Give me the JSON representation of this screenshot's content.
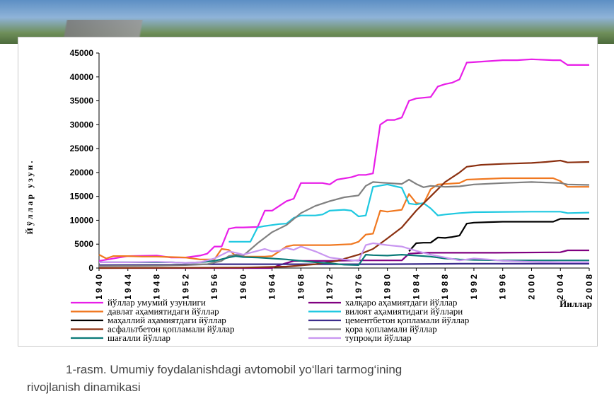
{
  "caption": {
    "line1": "1-rasm. Umumiy foydalanishdagi avtomobil yo‘llari tarmog‘ining",
    "line2": "rivojlanish dinamikasi"
  },
  "chart_data": {
    "type": "line",
    "ylabel": "Йўллар узун.",
    "xlabel": "Йиллар",
    "xlim": [
      1940,
      2008
    ],
    "ylim": [
      0,
      45000
    ],
    "grid": false,
    "legend_position": "bottom",
    "y_ticks": [
      0,
      5000,
      10000,
      15000,
      20000,
      25000,
      30000,
      35000,
      40000,
      45000
    ],
    "x_ticks": [
      1940,
      1944,
      1948,
      1952,
      1956,
      1960,
      1964,
      1968,
      1972,
      1976,
      1980,
      1984,
      1988,
      1992,
      1996,
      2000,
      2004,
      2008
    ],
    "series": [
      {
        "name": "йўллар умумий узунлиги",
        "color": "#e81ee8",
        "points": [
          [
            1940,
            1500
          ],
          [
            1944,
            2500
          ],
          [
            1948,
            2600
          ],
          [
            1950,
            2200
          ],
          [
            1952,
            2200
          ],
          [
            1954,
            2600
          ],
          [
            1955,
            3000
          ],
          [
            1956,
            4500
          ],
          [
            1957,
            4500
          ],
          [
            1958,
            8200
          ],
          [
            1959,
            8500
          ],
          [
            1960,
            8500
          ],
          [
            1962,
            8600
          ],
          [
            1963,
            12000
          ],
          [
            1964,
            12000
          ],
          [
            1965,
            13000
          ],
          [
            1966,
            14000
          ],
          [
            1967,
            14500
          ],
          [
            1968,
            17800
          ],
          [
            1970,
            17800
          ],
          [
            1971,
            17800
          ],
          [
            1972,
            17500
          ],
          [
            1973,
            18500
          ],
          [
            1975,
            19000
          ],
          [
            1976,
            19500
          ],
          [
            1977,
            19500
          ],
          [
            1978,
            19800
          ],
          [
            1979,
            30000
          ],
          [
            1980,
            31000
          ],
          [
            1981,
            31000
          ],
          [
            1982,
            31500
          ],
          [
            1983,
            35000
          ],
          [
            1984,
            35500
          ],
          [
            1986,
            35800
          ],
          [
            1987,
            38000
          ],
          [
            1988,
            38500
          ],
          [
            1989,
            38800
          ],
          [
            1990,
            39500
          ],
          [
            1991,
            43000
          ],
          [
            1994,
            43300
          ],
          [
            1996,
            43500
          ],
          [
            1998,
            43500
          ],
          [
            2000,
            43700
          ],
          [
            2003,
            43500
          ],
          [
            2004,
            43500
          ],
          [
            2005,
            42500
          ],
          [
            2008,
            42500
          ]
        ]
      },
      {
        "name": "халқаро аҳамиятдаги йўллар",
        "color": "#800080",
        "points": [
          [
            1940,
            0
          ],
          [
            1964,
            0
          ],
          [
            1965,
            600
          ],
          [
            1967,
            1500
          ],
          [
            1968,
            1500
          ],
          [
            1972,
            1500
          ],
          [
            1976,
            1600
          ],
          [
            1980,
            1600
          ],
          [
            1982,
            1600
          ],
          [
            1983,
            3000
          ],
          [
            1985,
            3200
          ],
          [
            1995,
            3200
          ],
          [
            2004,
            3300
          ],
          [
            2005,
            3700
          ],
          [
            2008,
            3700
          ]
        ]
      },
      {
        "name": "давлат аҳамиятидаги йўллар",
        "color": "#f07820",
        "points": [
          [
            1940,
            2800
          ],
          [
            1941,
            2000
          ],
          [
            1942,
            2500
          ],
          [
            1944,
            2500
          ],
          [
            1946,
            2400
          ],
          [
            1948,
            2400
          ],
          [
            1950,
            2300
          ],
          [
            1952,
            2200
          ],
          [
            1954,
            1800
          ],
          [
            1956,
            1800
          ],
          [
            1957,
            4000
          ],
          [
            1958,
            3800
          ],
          [
            1959,
            2500
          ],
          [
            1960,
            2400
          ],
          [
            1963,
            2400
          ],
          [
            1964,
            2500
          ],
          [
            1965,
            3500
          ],
          [
            1966,
            4500
          ],
          [
            1967,
            4800
          ],
          [
            1970,
            4800
          ],
          [
            1972,
            4800
          ],
          [
            1975,
            5000
          ],
          [
            1976,
            5500
          ],
          [
            1977,
            7000
          ],
          [
            1978,
            7200
          ],
          [
            1979,
            12000
          ],
          [
            1980,
            11800
          ],
          [
            1982,
            12200
          ],
          [
            1983,
            15500
          ],
          [
            1984,
            13600
          ],
          [
            1985,
            13400
          ],
          [
            1986,
            16500
          ],
          [
            1987,
            17500
          ],
          [
            1990,
            17800
          ],
          [
            1991,
            18500
          ],
          [
            1996,
            18800
          ],
          [
            2002,
            18800
          ],
          [
            2003,
            18800
          ],
          [
            2004,
            18200
          ],
          [
            2005,
            17000
          ],
          [
            2008,
            17000
          ]
        ]
      },
      {
        "name": "вилоят аҳамиятидаги йўллари",
        "color": "#1ec8e0",
        "points": [
          [
            1958,
            5500
          ],
          [
            1961,
            5500
          ],
          [
            1962,
            8500
          ],
          [
            1963,
            8800
          ],
          [
            1964,
            9000
          ],
          [
            1965,
            9200
          ],
          [
            1966,
            9300
          ],
          [
            1967,
            10500
          ],
          [
            1968,
            11000
          ],
          [
            1970,
            11000
          ],
          [
            1971,
            11200
          ],
          [
            1972,
            12000
          ],
          [
            1974,
            12200
          ],
          [
            1975,
            12000
          ],
          [
            1976,
            10800
          ],
          [
            1977,
            11000
          ],
          [
            1978,
            17000
          ],
          [
            1980,
            17500
          ],
          [
            1982,
            16800
          ],
          [
            1983,
            13500
          ],
          [
            1984,
            13300
          ],
          [
            1985,
            13600
          ],
          [
            1986,
            12500
          ],
          [
            1987,
            11000
          ],
          [
            1988,
            11200
          ],
          [
            1990,
            11500
          ],
          [
            1992,
            11700
          ],
          [
            2000,
            11800
          ],
          [
            2004,
            11800
          ],
          [
            2005,
            11500
          ],
          [
            2008,
            11600
          ]
        ]
      },
      {
        "name": "маҳаллий аҳамиятдаги йўллар",
        "color": "#000000",
        "points": [
          [
            1983,
            3500
          ],
          [
            1984,
            5200
          ],
          [
            1985,
            5300
          ],
          [
            1986,
            5300
          ],
          [
            1987,
            6400
          ],
          [
            1988,
            6300
          ],
          [
            1989,
            6500
          ],
          [
            1990,
            6800
          ],
          [
            1991,
            9300
          ],
          [
            1992,
            9500
          ],
          [
            1994,
            9600
          ],
          [
            1996,
            9700
          ],
          [
            2003,
            9700
          ],
          [
            2004,
            10300
          ],
          [
            2005,
            10300
          ],
          [
            2008,
            10300
          ]
        ]
      },
      {
        "name": "цементбетон қопламали йўллар",
        "color": "#3c2d8c",
        "points": [
          [
            1940,
            600
          ],
          [
            1950,
            700
          ],
          [
            1956,
            800
          ],
          [
            1960,
            800
          ],
          [
            1970,
            800
          ],
          [
            1980,
            800
          ],
          [
            1990,
            900
          ],
          [
            2000,
            900
          ],
          [
            2008,
            900
          ]
        ]
      },
      {
        "name": "асфальтбетон қопламали йўллар",
        "color": "#8b3010",
        "points": [
          [
            1940,
            0
          ],
          [
            1960,
            100
          ],
          [
            1966,
            300
          ],
          [
            1970,
            800
          ],
          [
            1973,
            1500
          ],
          [
            1976,
            2800
          ],
          [
            1978,
            4000
          ],
          [
            1980,
            6200
          ],
          [
            1982,
            8500
          ],
          [
            1984,
            12000
          ],
          [
            1986,
            15000
          ],
          [
            1988,
            18000
          ],
          [
            1990,
            20000
          ],
          [
            1991,
            21200
          ],
          [
            1993,
            21600
          ],
          [
            1996,
            21800
          ],
          [
            2000,
            22000
          ],
          [
            2002,
            22200
          ],
          [
            2004,
            22500
          ],
          [
            2005,
            22100
          ],
          [
            2008,
            22200
          ]
        ]
      },
      {
        "name": "қора қопламали йўллар",
        "color": "#808080",
        "points": [
          [
            1940,
            400
          ],
          [
            1948,
            500
          ],
          [
            1952,
            600
          ],
          [
            1955,
            800
          ],
          [
            1957,
            1500
          ],
          [
            1958,
            2500
          ],
          [
            1959,
            2800
          ],
          [
            1960,
            2600
          ],
          [
            1962,
            5200
          ],
          [
            1964,
            7500
          ],
          [
            1966,
            9000
          ],
          [
            1968,
            11500
          ],
          [
            1970,
            13000
          ],
          [
            1972,
            14000
          ],
          [
            1974,
            14800
          ],
          [
            1976,
            15200
          ],
          [
            1977,
            17200
          ],
          [
            1978,
            18000
          ],
          [
            1980,
            17800
          ],
          [
            1982,
            17600
          ],
          [
            1983,
            18500
          ],
          [
            1984,
            17600
          ],
          [
            1985,
            16900
          ],
          [
            1986,
            17200
          ],
          [
            1988,
            17000
          ],
          [
            1990,
            17100
          ],
          [
            1992,
            17500
          ],
          [
            1996,
            17800
          ],
          [
            2000,
            18000
          ],
          [
            2004,
            17800
          ],
          [
            2005,
            17500
          ],
          [
            2008,
            17400
          ]
        ]
      },
      {
        "name": "шағалли йўллар",
        "color": "#0a7a78",
        "points": [
          [
            1940,
            1200
          ],
          [
            1944,
            1200
          ],
          [
            1948,
            1200
          ],
          [
            1950,
            1200
          ],
          [
            1952,
            1100
          ],
          [
            1954,
            1200
          ],
          [
            1956,
            1500
          ],
          [
            1958,
            2200
          ],
          [
            1959,
            2500
          ],
          [
            1960,
            2300
          ],
          [
            1962,
            2200
          ],
          [
            1964,
            2000
          ],
          [
            1966,
            1800
          ],
          [
            1968,
            1500
          ],
          [
            1970,
            1200
          ],
          [
            1972,
            1000
          ],
          [
            1974,
            700
          ],
          [
            1976,
            600
          ],
          [
            1977,
            2800
          ],
          [
            1978,
            2700
          ],
          [
            1980,
            2600
          ],
          [
            1982,
            2800
          ],
          [
            1984,
            2600
          ],
          [
            1986,
            2400
          ],
          [
            1988,
            2000
          ],
          [
            1990,
            1800
          ],
          [
            1992,
            1700
          ],
          [
            1996,
            1600
          ],
          [
            2000,
            1600
          ],
          [
            2004,
            1600
          ],
          [
            2008,
            1600
          ]
        ]
      },
      {
        "name": "тупроқли йўллар",
        "color": "#c896f0",
        "points": [
          [
            1940,
            1200
          ],
          [
            1944,
            1200
          ],
          [
            1948,
            1300
          ],
          [
            1950,
            1200
          ],
          [
            1952,
            1100
          ],
          [
            1954,
            1200
          ],
          [
            1956,
            2000
          ],
          [
            1958,
            3500
          ],
          [
            1959,
            3200
          ],
          [
            1960,
            2800
          ],
          [
            1962,
            3600
          ],
          [
            1963,
            4000
          ],
          [
            1964,
            3500
          ],
          [
            1965,
            3600
          ],
          [
            1966,
            4200
          ],
          [
            1967,
            3800
          ],
          [
            1968,
            4500
          ],
          [
            1970,
            3500
          ],
          [
            1972,
            2200
          ],
          [
            1974,
            1800
          ],
          [
            1976,
            1500
          ],
          [
            1977,
            4800
          ],
          [
            1978,
            5200
          ],
          [
            1980,
            4800
          ],
          [
            1982,
            4500
          ],
          [
            1984,
            3600
          ],
          [
            1986,
            2800
          ],
          [
            1988,
            2200
          ],
          [
            1990,
            1600
          ],
          [
            1992,
            2000
          ],
          [
            1994,
            1800
          ],
          [
            1996,
            1500
          ],
          [
            2000,
            1300
          ],
          [
            2004,
            1200
          ],
          [
            2008,
            1200
          ]
        ]
      }
    ]
  }
}
